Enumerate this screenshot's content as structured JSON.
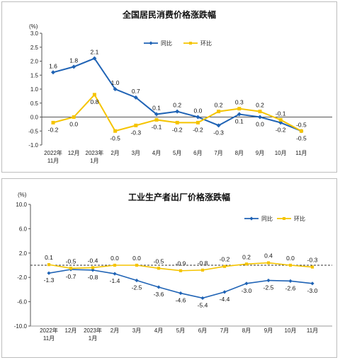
{
  "colors": {
    "yoy": "#1f63b5",
    "mom": "#f5c400",
    "axis": "#555555",
    "grid": "#444444"
  },
  "chart_data": [
    {
      "type": "line",
      "title": "全国居民消费价格涨跌幅",
      "unit": "(%)",
      "categories": [
        "2022年\n11月",
        "12月",
        "2023年\n1月",
        "2月",
        "3月",
        "4月",
        "5月",
        "6月",
        "7月",
        "8月",
        "9月",
        "10月",
        "11月"
      ],
      "ylim": [
        -1.0,
        3.0
      ],
      "yticks": [
        "3.0",
        "2.5",
        "2.0",
        "1.5",
        "1.0",
        "0.5",
        "0.0",
        "-0.5",
        "-1.0"
      ],
      "legend": "top-center",
      "series": [
        {
          "name": "同比",
          "values": [
            1.6,
            1.8,
            2.1,
            1.0,
            0.7,
            0.1,
            0.2,
            0.0,
            -0.3,
            0.1,
            0.0,
            -0.2,
            -0.5
          ],
          "labels": [
            "1.6",
            "1.8",
            "2.1",
            "1.0",
            "0.7",
            "0.1",
            "0.2",
            "0.0",
            "-0.3",
            "0.1",
            "0.0",
            "-0.2",
            "-0.5"
          ]
        },
        {
          "name": "环比",
          "values": [
            -0.2,
            0.0,
            0.8,
            -0.5,
            -0.3,
            -0.1,
            -0.2,
            -0.2,
            0.2,
            0.3,
            0.2,
            -0.1,
            -0.5
          ],
          "labels": [
            "-0.2",
            "0.0",
            "0.8",
            "-0.5",
            "-0.3",
            "-0.1",
            "-0.2",
            "-0.2",
            "0.2",
            "0.3",
            "0.2",
            "-0.1",
            "-0.5"
          ]
        }
      ]
    },
    {
      "type": "line",
      "title": "工业生产者出厂价格涨跌幅",
      "unit": "(%)",
      "categories": [
        "2022年\n11月",
        "12月",
        "2023年\n1月",
        "2月",
        "3月",
        "4月",
        "5月",
        "6月",
        "7月",
        "8月",
        "9月",
        "10月",
        "11月"
      ],
      "ylim": [
        -10.0,
        10.0
      ],
      "yticks": [
        "10.0",
        "6.0",
        "2.0",
        "-2.0",
        "-6.0",
        "-10.0"
      ],
      "legend": "top-right",
      "series": [
        {
          "name": "同比",
          "values": [
            -1.3,
            -0.7,
            -0.8,
            -1.4,
            -2.5,
            -3.6,
            -4.6,
            -5.4,
            -4.4,
            -3.0,
            -2.5,
            -2.6,
            -3.0
          ],
          "labels": [
            "-1.3",
            "-0.7",
            "-0.8",
            "-1.4",
            "-2.5",
            "-3.6",
            "-4.6",
            "-5.4",
            "-4.4",
            "-3.0",
            "-2.5",
            "-2.6",
            "-3.0"
          ]
        },
        {
          "name": "环比",
          "values": [
            0.1,
            -0.5,
            -0.4,
            0.0,
            0.0,
            -0.5,
            -0.9,
            -0.8,
            -0.2,
            0.2,
            0.4,
            0.0,
            -0.3
          ],
          "labels": [
            "0.1",
            "-0.5",
            "-0.4",
            "0.0",
            "0.0",
            "-0.5",
            "-0.9",
            "-0.8",
            "-0.2",
            "0.2",
            "0.4",
            "0.0",
            "-0.3"
          ]
        }
      ]
    }
  ]
}
